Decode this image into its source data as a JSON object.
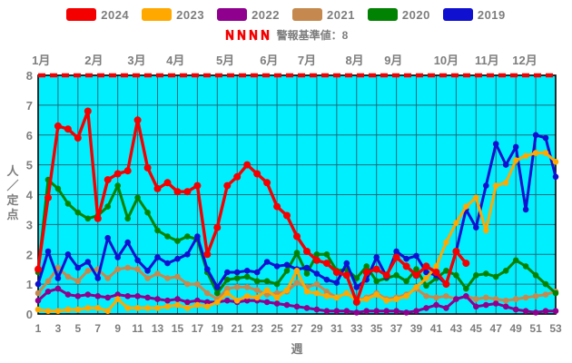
{
  "chart_data": {
    "type": "line",
    "title": "",
    "xlabel": "週",
    "ylabel": "人／定点",
    "ylabel_chars": [
      "人",
      "／",
      "定",
      "点"
    ],
    "xlim": [
      1,
      53
    ],
    "ylim": [
      0,
      8
    ],
    "y_ticks": [
      0,
      1,
      2,
      3,
      4,
      5,
      6,
      7,
      8
    ],
    "x_ticks": [
      1,
      3,
      5,
      7,
      9,
      11,
      13,
      15,
      17,
      19,
      21,
      23,
      25,
      27,
      29,
      31,
      33,
      35,
      37,
      39,
      41,
      43,
      45,
      47,
      49,
      51,
      53
    ],
    "grid": true,
    "legend_position": "top",
    "plot_background": "#00EFFF",
    "grid_color": "#1d6a7a",
    "axis_frame_color": "#000000",
    "tick_label_color": "#7e7e7e",
    "threshold": {
      "value": 8,
      "label": "警報基準値：8",
      "color": "#f40000",
      "style": "dashed"
    },
    "months": [
      {
        "label": "1月",
        "center_week": 1.3
      },
      {
        "label": "2月",
        "center_week": 6.6
      },
      {
        "label": "3月",
        "center_week": 10.9
      },
      {
        "label": "4月",
        "center_week": 14.8
      },
      {
        "label": "5月",
        "center_week": 19.8
      },
      {
        "label": "6月",
        "center_week": 24.2
      },
      {
        "label": "7月",
        "center_week": 28.0
      },
      {
        "label": "8月",
        "center_week": 32.8
      },
      {
        "label": "9月",
        "center_week": 36.7
      },
      {
        "label": "10月",
        "center_week": 42.0
      },
      {
        "label": "11月",
        "center_week": 46.1
      },
      {
        "label": "12月",
        "center_week": 49.9
      }
    ],
    "x": [
      1,
      2,
      3,
      4,
      5,
      6,
      7,
      8,
      9,
      10,
      11,
      12,
      13,
      14,
      15,
      16,
      17,
      18,
      19,
      20,
      21,
      22,
      23,
      24,
      25,
      26,
      27,
      28,
      29,
      30,
      31,
      32,
      33,
      34,
      35,
      36,
      37,
      38,
      39,
      40,
      41,
      42,
      43,
      44,
      45,
      46,
      47,
      48,
      49,
      50,
      51,
      52,
      53
    ],
    "series": [
      {
        "name": "2024",
        "color": "#f40000",
        "values": [
          1.5,
          3.9,
          6.3,
          6.2,
          5.9,
          6.8,
          3.2,
          4.5,
          4.7,
          4.8,
          6.5,
          4.9,
          4.2,
          4.4,
          4.1,
          4.1,
          4.3,
          2.0,
          2.9,
          4.3,
          4.6,
          5.0,
          4.7,
          4.4,
          3.6,
          3.3,
          2.6,
          2.1,
          1.8,
          1.7,
          1.4,
          1.3,
          0.4,
          1.4,
          1.5,
          1.3,
          1.9,
          1.6,
          1.3,
          1.6,
          1.4,
          1.0,
          2.1,
          1.7,
          null,
          null,
          null,
          null,
          null,
          null,
          null,
          null,
          null
        ]
      },
      {
        "name": "2023",
        "color": "#ffa800",
        "values": [
          0.15,
          0.1,
          0.1,
          0.15,
          0.15,
          0.2,
          0.2,
          0.1,
          0.5,
          0.2,
          0.2,
          0.2,
          0.2,
          0.25,
          0.3,
          0.2,
          0.3,
          0.25,
          0.4,
          0.7,
          0.45,
          0.6,
          0.55,
          0.8,
          0.55,
          0.8,
          1.45,
          0.75,
          0.7,
          0.6,
          0.55,
          0.7,
          0.45,
          0.5,
          0.65,
          0.45,
          0.5,
          0.6,
          0.9,
          1.2,
          1.6,
          2.4,
          3.05,
          3.6,
          3.9,
          2.8,
          4.3,
          4.4,
          5.15,
          5.3,
          5.4,
          5.4,
          5.1
        ]
      },
      {
        "name": "2022",
        "color": "#8f008f",
        "values": [
          0.45,
          0.75,
          0.85,
          0.65,
          0.6,
          0.65,
          0.6,
          0.55,
          0.65,
          0.6,
          0.6,
          0.55,
          0.5,
          0.45,
          0.5,
          0.4,
          0.45,
          0.4,
          0.4,
          0.45,
          0.4,
          0.45,
          0.45,
          0.4,
          0.35,
          0.3,
          0.25,
          0.2,
          0.15,
          0.1,
          0.1,
          0.1,
          0.05,
          0.1,
          0.1,
          0.1,
          0.1,
          0.05,
          0.1,
          0.2,
          0.3,
          0.2,
          0.5,
          0.6,
          0.25,
          0.3,
          0.35,
          0.25,
          0.15,
          0.1,
          0.05,
          0.1,
          0.1
        ]
      },
      {
        "name": "2021",
        "color": "#c5894f",
        "values": [
          0.7,
          1.1,
          1.55,
          1.25,
          1.1,
          1.45,
          1.5,
          1.2,
          1.5,
          1.55,
          1.5,
          1.2,
          1.35,
          1.2,
          1.25,
          1.0,
          1.0,
          0.7,
          0.5,
          0.85,
          0.9,
          0.9,
          0.8,
          0.65,
          0.7,
          0.75,
          1.05,
          0.9,
          1.0,
          0.75,
          0.55,
          0.7,
          0.45,
          0.55,
          0.7,
          0.5,
          0.55,
          0.65,
          0.85,
          0.6,
          0.55,
          0.6,
          0.5,
          0.6,
          0.5,
          0.55,
          0.5,
          0.45,
          0.5,
          0.55,
          0.6,
          0.65,
          0.75
        ]
      },
      {
        "name": "2020",
        "color": "#028202",
        "values": [
          1.4,
          4.5,
          4.2,
          3.7,
          3.4,
          3.2,
          3.3,
          3.6,
          4.3,
          3.2,
          3.9,
          3.4,
          2.8,
          2.6,
          2.45,
          2.6,
          2.5,
          1.4,
          0.7,
          1.15,
          1.2,
          1.25,
          1.1,
          1.1,
          1.0,
          1.45,
          2.05,
          1.35,
          2.0,
          2.0,
          1.45,
          1.5,
          1.2,
          1.6,
          1.1,
          1.2,
          1.3,
          1.1,
          1.5,
          0.95,
          1.2,
          1.45,
          1.3,
          0.85,
          1.3,
          1.35,
          1.25,
          1.45,
          1.8,
          1.6,
          1.3,
          1.0,
          0.7
        ]
      },
      {
        "name": "2019",
        "color": "#1010d0",
        "values": [
          1.0,
          2.1,
          1.2,
          2.0,
          1.55,
          1.75,
          1.2,
          2.55,
          1.9,
          2.4,
          1.8,
          1.45,
          1.9,
          1.7,
          1.85,
          2.0,
          2.6,
          1.5,
          0.9,
          1.4,
          1.4,
          1.45,
          1.4,
          1.75,
          1.6,
          1.65,
          1.5,
          1.55,
          1.35,
          1.15,
          1.05,
          1.7,
          0.9,
          1.15,
          1.9,
          1.25,
          2.1,
          1.85,
          1.95,
          1.4,
          1.3,
          1.0,
          2.1,
          3.5,
          2.9,
          4.3,
          5.7,
          5.0,
          5.6,
          3.5,
          6.0,
          5.9,
          4.6
        ]
      }
    ],
    "draw_order": [
      "2021",
      "2022",
      "2020",
      "2019",
      "2023",
      "2024"
    ]
  }
}
